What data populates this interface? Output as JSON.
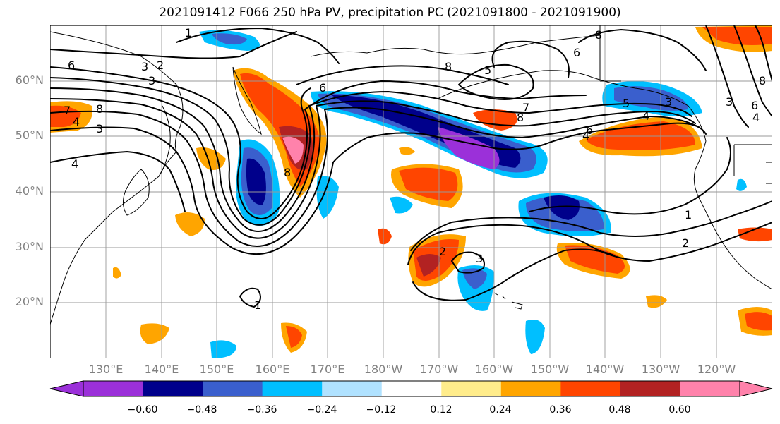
{
  "title": "2021091412 F066 250 hPa PV, precipitation PC (2021091800 - 2021091900)",
  "lat_labels": [
    "60°N",
    "50°N",
    "40°N",
    "30°N",
    "20°N"
  ],
  "lon_labels": [
    "130°E",
    "140°E",
    "150°E",
    "160°E",
    "170°E",
    "180°W",
    "170°W",
    "160°W",
    "150°W",
    "140°W",
    "130°W",
    "120°W"
  ],
  "colorbar": {
    "colors": [
      "#9b30d9",
      "#00008b",
      "#3a5fcd",
      "#00bfff",
      "#b0e2ff",
      "#ffffff",
      "#ffec8b",
      "#ffa500",
      "#ff4500",
      "#b22222",
      "#ff82ab"
    ],
    "tick_labels": [
      "−0.60",
      "−0.48",
      "−0.36",
      "−0.24",
      "−0.12",
      "0.12",
      "0.24",
      "0.36",
      "0.48",
      "0.60"
    ]
  },
  "pv_contour_labels": [
    "1",
    "2",
    "3",
    "4",
    "5",
    "6",
    "7",
    "8"
  ],
  "colors": {
    "land_outline": "#000000",
    "grid": "#999999",
    "label_gray": "#808080"
  }
}
